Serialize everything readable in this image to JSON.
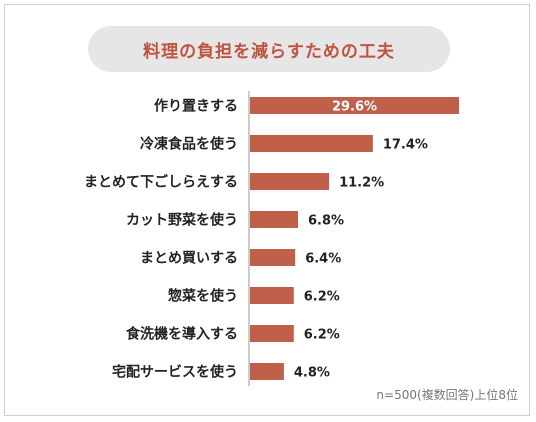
{
  "chart_data": {
    "type": "bar",
    "orientation": "horizontal",
    "title": "料理の負担を減らすための工夫",
    "categories": [
      "作り置きする",
      "冷凍食品を使う",
      "まとめて下ごしらえする",
      "カット野菜を使う",
      "まとめ買いする",
      "惣菜を使う",
      "食洗機を導入する",
      "宅配サービスを使う"
    ],
    "values": [
      29.6,
      17.4,
      11.2,
      6.8,
      6.4,
      6.2,
      6.2,
      4.8
    ],
    "value_labels": [
      "29.6%",
      "17.4%",
      "11.2%",
      "6.8%",
      "6.4%",
      "6.2%",
      "6.2%",
      "4.8%"
    ],
    "bar_color": "#c0604b",
    "grid": false,
    "xlim": [
      0,
      29.6
    ]
  },
  "note": "n=500(複数回答)上位8位"
}
